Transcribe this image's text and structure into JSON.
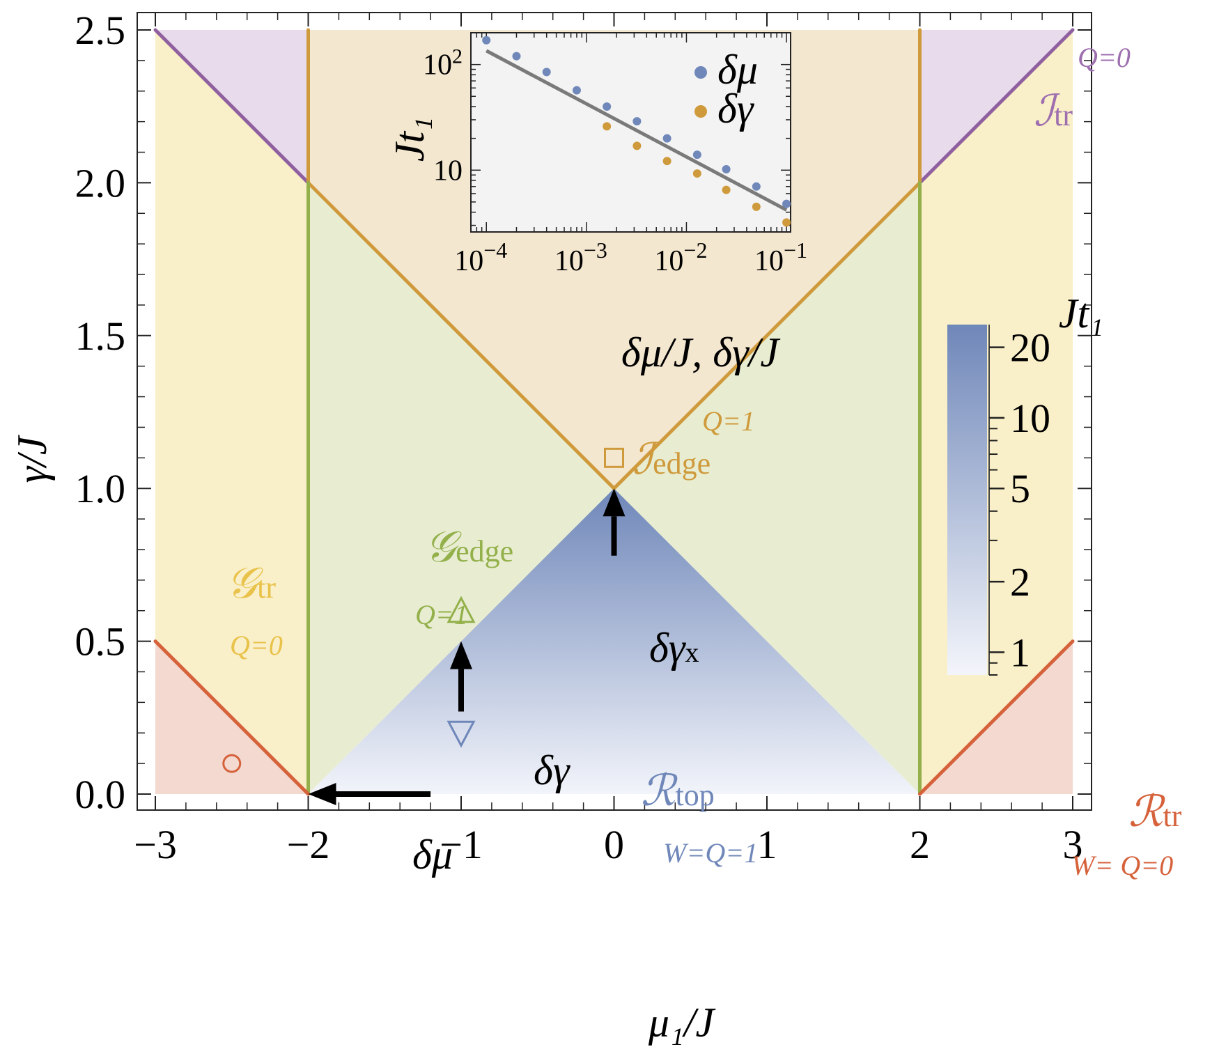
{
  "chart_data": [
    {
      "type": "area",
      "xlabel": "μ₁/J",
      "ylabel": "γ/J",
      "xlim": [
        -3,
        3
      ],
      "ylim": [
        0,
        2.5
      ],
      "x_ticks": [
        "−3",
        "−2",
        "−1",
        "0",
        "1",
        "2",
        "3"
      ],
      "x_tick_values": [
        -3,
        -2,
        -1,
        0,
        1,
        2,
        3
      ],
      "y_ticks": [
        "0.0",
        "0.5",
        "1.0",
        "1.5",
        "2.0",
        "2.5"
      ],
      "y_tick_values": [
        0,
        0.5,
        1.0,
        1.5,
        2.0,
        2.5
      ],
      "regions": [
        {
          "name": "G_tr",
          "main": "𝒢",
          "sub": "tr",
          "invariant": "Q=0",
          "color": "#f9efc8",
          "polygons": [
            [
              [
                -3,
                0.5
              ],
              [
                -3,
                2.5
              ],
              [
                -2,
                2
              ],
              [
                -2,
                0
              ]
            ],
            [
              [
                2,
                0
              ],
              [
                2,
                2
              ],
              [
                3,
                2.5
              ],
              [
                3,
                0.5
              ]
            ]
          ]
        },
        {
          "name": "I_tr",
          "main": "ℐ",
          "sub": "tr",
          "invariant": "Q=0",
          "color": "#e8dcec",
          "polygons": [
            [
              [
                -3,
                2.5
              ],
              [
                -2,
                2.5
              ],
              [
                -2,
                2
              ]
            ],
            [
              [
                2,
                2
              ],
              [
                2,
                2.5
              ],
              [
                3,
                2.5
              ]
            ]
          ]
        },
        {
          "name": "I_edge",
          "main": "ℐ",
          "sub": "edge",
          "invariant": "Q=1",
          "color": "#f4e7d0",
          "polygons": [
            [
              [
                -2,
                2
              ],
              [
                -2,
                2.5
              ],
              [
                2,
                2.5
              ],
              [
                2,
                2
              ],
              [
                0,
                1
              ]
            ]
          ]
        },
        {
          "name": "G_edge",
          "main": "𝒢",
          "sub": "edge",
          "invariant": "Q=1",
          "color": "#e8edd2",
          "polygons": [
            [
              [
                -2,
                0
              ],
              [
                -2,
                2
              ],
              [
                0,
                1
              ]
            ],
            [
              [
                2,
                0
              ],
              [
                2,
                2
              ],
              [
                0,
                1
              ]
            ]
          ]
        },
        {
          "name": "R_top",
          "main": "ℛ",
          "sub": "top",
          "invariant": "W=Q=1",
          "color": "#6f87b9",
          "polygons": [
            [
              [
                -2,
                0
              ],
              [
                0,
                1
              ],
              [
                2,
                0
              ]
            ]
          ]
        },
        {
          "name": "R_tr",
          "main": "ℛ",
          "sub": "tr",
          "invariant": "W= Q=0",
          "color": "#f3d9cf",
          "polygons": [
            [
              [
                -3,
                0
              ],
              [
                -3,
                0.5
              ],
              [
                -2,
                0
              ]
            ],
            [
              [
                2,
                0
              ],
              [
                3,
                0.5
              ],
              [
                3,
                0
              ]
            ]
          ]
        }
      ],
      "boundaries": [
        {
          "color": "#8f5fa0",
          "points": [
            [
              -3,
              2.5
            ],
            [
              -2,
              2
            ]
          ]
        },
        {
          "color": "#8f5fa0",
          "points": [
            [
              2,
              2
            ],
            [
              3,
              2.5
            ]
          ]
        },
        {
          "color": "#cf9a3b",
          "points": [
            [
              -2,
              2.5
            ],
            [
              -2,
              2
            ]
          ]
        },
        {
          "color": "#cf9a3b",
          "points": [
            [
              2,
              2.5
            ],
            [
              2,
              2
            ]
          ]
        },
        {
          "color": "#cf9a3b",
          "points": [
            [
              -2,
              2
            ],
            [
              0,
              1
            ],
            [
              2,
              2
            ]
          ]
        },
        {
          "color": "#93b04a",
          "points": [
            [
              -2,
              2
            ],
            [
              -2,
              0
            ]
          ]
        },
        {
          "color": "#93b04a",
          "points": [
            [
              2,
              2
            ],
            [
              2,
              0
            ]
          ]
        },
        {
          "color": "#d6623c",
          "points": [
            [
              -3,
              0.5
            ],
            [
              -2,
              0
            ]
          ]
        },
        {
          "color": "#d6623c",
          "points": [
            [
              2,
              0
            ],
            [
              3,
              0.5
            ]
          ]
        }
      ],
      "markers": [
        {
          "shape": "circle",
          "x": -2.5,
          "y": 0.1,
          "color": "#d6623c"
        },
        {
          "shape": "triangle-up",
          "x": -1,
          "y": 0.6,
          "color": "#93b04a"
        },
        {
          "shape": "triangle-down",
          "x": -1,
          "y": 0.2,
          "color": "#6f87b9"
        },
        {
          "shape": "square",
          "x": 0,
          "y": 1.1,
          "color": "#cf9a3b"
        }
      ],
      "arrows": [
        {
          "label": "δμ",
          "from": [
            -1.2,
            0
          ],
          "to": [
            -2,
            0
          ]
        },
        {
          "label": "δγ",
          "from": [
            -1,
            0.27
          ],
          "to": [
            -1,
            0.5
          ]
        },
        {
          "label": "δγ",
          "label_sub": "x",
          "from": [
            0,
            0.78
          ],
          "to": [
            0,
            1.0
          ]
        }
      ],
      "colorbar": {
        "title": "Jt₁",
        "scale": "log",
        "range": [
          0.8,
          25
        ],
        "tick_labels": [
          "1",
          "2",
          "5",
          "10",
          "20"
        ],
        "tick_values": [
          1,
          2,
          5,
          10,
          20
        ],
        "color_low": "#f3f5fa",
        "color_high": "#6f87b9"
      }
    },
    {
      "type": "scatter",
      "xlabel": "δμ/J, δγ/J",
      "ylabel": "Jt₁",
      "x_scale": "log",
      "y_scale": "log",
      "xlim": [
        7e-05,
        0.11
      ],
      "ylim": [
        2.6,
        200
      ],
      "x_tick_labels": [
        {
          "base": "10",
          "exp": "−4",
          "value": 0.0001
        },
        {
          "base": "10",
          "exp": "−3",
          "value": 0.001
        },
        {
          "base": "10",
          "exp": "−2",
          "value": 0.01
        },
        {
          "base": "10",
          "exp": "−1",
          "value": 0.1
        }
      ],
      "y_tick_labels": [
        {
          "base": "10",
          "exp": "2",
          "value": 100
        },
        {
          "base": "10",
          "exp": "",
          "value": 10
        }
      ],
      "series": [
        {
          "name": "δμ",
          "color": "#6f87b9",
          "x": [
            0.0001,
            0.0002,
            0.0004,
            0.0008,
            0.0016,
            0.0032,
            0.0064,
            0.0128,
            0.025,
            0.05,
            0.1
          ],
          "y": [
            170,
            120,
            85,
            57,
            40,
            29,
            20,
            14,
            10.2,
            7,
            4.8
          ]
        },
        {
          "name": "δγ",
          "color": "#cf9a3b",
          "x": [
            0.0016,
            0.0032,
            0.0064,
            0.0128,
            0.025,
            0.05,
            0.1
          ],
          "y": [
            26,
            17,
            12.2,
            9.3,
            6.5,
            4.5,
            3.2
          ]
        }
      ],
      "fit_line": {
        "color": "#7a7a7a",
        "x": [
          0.0001,
          0.1
        ],
        "y": [
          135,
          4.2
        ]
      }
    }
  ]
}
